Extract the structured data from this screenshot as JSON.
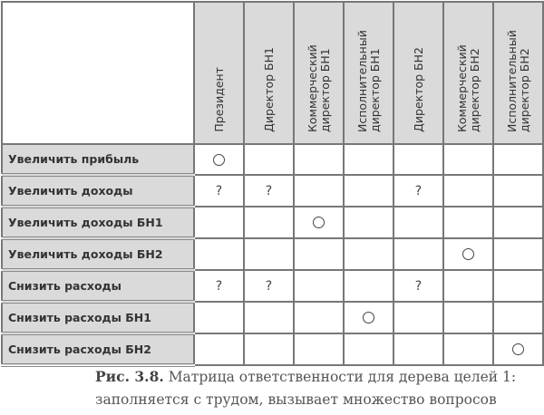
{
  "columns": [
    "Президент",
    "Директор БН1",
    "Коммерческий директор БН1",
    "Исполнительный директор БН1",
    "Директор БН2",
    "Коммерческий директор БН2",
    "Исполнительный директор БН2"
  ],
  "rows": [
    {
      "label": "Увеличить прибыль",
      "cells": [
        "○",
        "",
        "",
        "",
        "",
        "",
        ""
      ]
    },
    {
      "label": "Увеличить доходы",
      "cells": [
        "?",
        "?",
        "",
        "",
        "?",
        "",
        ""
      ]
    },
    {
      "label": "Увеличить доходы БН1",
      "cells": [
        "",
        "",
        "○",
        "",
        "",
        "",
        ""
      ]
    },
    {
      "label": "Увеличить доходы БН2",
      "cells": [
        "",
        "",
        "",
        "",
        "",
        "○",
        ""
      ]
    },
    {
      "label": "Снизить расходы",
      "cells": [
        "?",
        "?",
        "",
        "",
        "?",
        "",
        ""
      ]
    },
    {
      "label": "Снизить расходы БН1",
      "cells": [
        "",
        "",
        "",
        "○",
        "",
        "",
        ""
      ]
    },
    {
      "label": "Снизить расходы БН2",
      "cells": [
        "",
        "",
        "",
        "",
        "",
        "",
        "○"
      ]
    }
  ],
  "caption": {
    "number": "Рис. 3.8.",
    "line1": "Матрица ответственности для дерева целей 1:",
    "line2": "заполняется с трудом, вызывает множество вопросов"
  }
}
